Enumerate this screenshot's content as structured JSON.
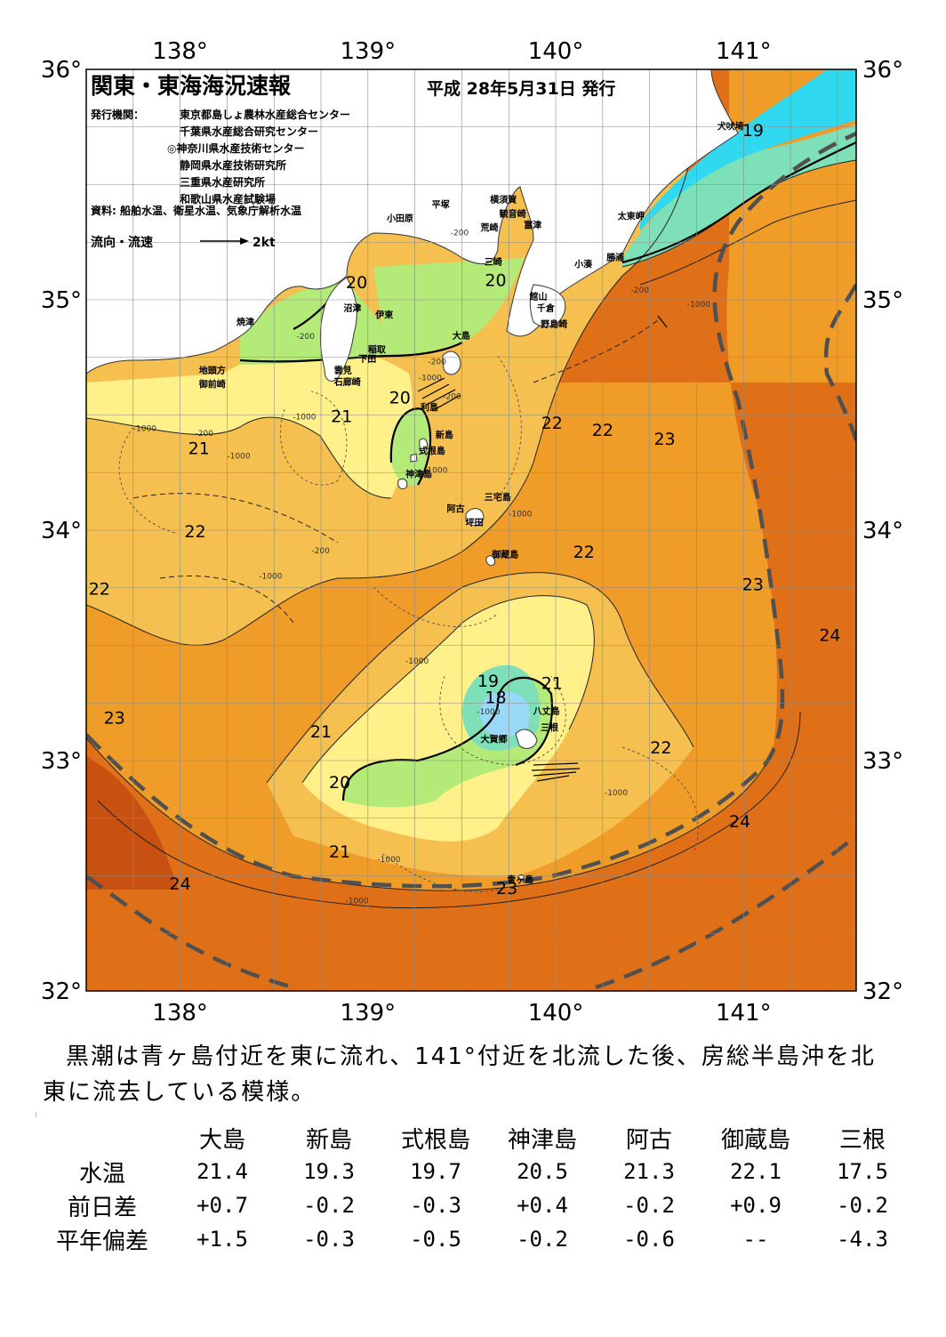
{
  "title": "関東・東海海況速報",
  "issue_date": "平成 28年5月31日 発行",
  "publishers_label": "発行機関：",
  "publishers": [
    "東京都島しょ農林水産総合センター",
    "千葉県水産総合研究センター",
    "◎神奈川県水産技術センター",
    "静岡県水産技術研究所",
    "三重県水産研究所",
    "和歌山県水産試験場"
  ],
  "sources": "資料: 船舶水温、衛星水温、気象庁解析水温",
  "legend": {
    "label": "流向・流速",
    "scale": "2kt"
  },
  "axes": {
    "lon_labels": [
      "138°",
      "139°",
      "140°",
      "141°"
    ],
    "lat_labels": [
      "36°",
      "35°",
      "34°",
      "33°",
      "32°"
    ],
    "lon_range": [
      137.5,
      141.6
    ],
    "lat_range": [
      32.0,
      36.0
    ]
  },
  "colors": {
    "t18": "#9ad8f8",
    "t19": "#7de0b8",
    "t20": "#b4ea78",
    "t21": "#fff08a",
    "t22": "#f6c050",
    "t23": "#ef9c28",
    "t24": "#e07018",
    "t25": "#c85010",
    "coast_cold": "#30d8f0",
    "kuroshio_axis": "#505050",
    "land": "#ffffff"
  },
  "places": [
    {
      "name": "犬吠埼",
      "lon": 140.86,
      "lat": 35.74
    },
    {
      "name": "太東岬",
      "lon": 140.33,
      "lat": 35.35
    },
    {
      "name": "勝浦",
      "lon": 140.27,
      "lat": 35.17
    },
    {
      "name": "小湊",
      "lon": 140.1,
      "lat": 35.14
    },
    {
      "name": "富津",
      "lon": 139.83,
      "lat": 35.31
    },
    {
      "name": "横須賀",
      "lon": 139.65,
      "lat": 35.42
    },
    {
      "name": "平塚",
      "lon": 139.34,
      "lat": 35.4
    },
    {
      "name": "観音崎",
      "lon": 139.7,
      "lat": 35.36
    },
    {
      "name": "荒崎",
      "lon": 139.6,
      "lat": 35.3
    },
    {
      "name": "三崎",
      "lon": 139.62,
      "lat": 35.15
    },
    {
      "name": "小田原",
      "lon": 139.1,
      "lat": 35.34
    },
    {
      "name": "館山",
      "lon": 139.86,
      "lat": 35.0
    },
    {
      "name": "千倉",
      "lon": 139.9,
      "lat": 34.95
    },
    {
      "name": "野島崎",
      "lon": 139.92,
      "lat": 34.88
    },
    {
      "name": "沼津",
      "lon": 138.87,
      "lat": 34.95
    },
    {
      "name": "伊東",
      "lon": 139.04,
      "lat": 34.92
    },
    {
      "name": "焼津",
      "lon": 138.3,
      "lat": 34.89
    },
    {
      "name": "大島",
      "lon": 139.45,
      "lat": 34.83
    },
    {
      "name": "稲取",
      "lon": 139.0,
      "lat": 34.77
    },
    {
      "name": "下田",
      "lon": 138.95,
      "lat": 34.73
    },
    {
      "name": "雲見",
      "lon": 138.82,
      "lat": 34.68
    },
    {
      "name": "石廊崎",
      "lon": 138.82,
      "lat": 34.63
    },
    {
      "name": "地頭方",
      "lon": 138.1,
      "lat": 34.68
    },
    {
      "name": "御前崎",
      "lon": 138.1,
      "lat": 34.62
    },
    {
      "name": "利島",
      "lon": 139.28,
      "lat": 34.52
    },
    {
      "name": "新島",
      "lon": 139.36,
      "lat": 34.4
    },
    {
      "name": "式根島",
      "lon": 139.27,
      "lat": 34.33
    },
    {
      "name": "神津島",
      "lon": 139.2,
      "lat": 34.23
    },
    {
      "name": "三宅島",
      "lon": 139.62,
      "lat": 34.13
    },
    {
      "name": "阿古",
      "lon": 139.42,
      "lat": 34.08
    },
    {
      "name": "坪田",
      "lon": 139.52,
      "lat": 34.02
    },
    {
      "name": "御蔵島",
      "lon": 139.66,
      "lat": 33.88
    },
    {
      "name": "八丈島",
      "lon": 139.88,
      "lat": 33.2
    },
    {
      "name": "三根",
      "lon": 139.92,
      "lat": 33.13
    },
    {
      "name": "大賀郷",
      "lon": 139.6,
      "lat": 33.08
    },
    {
      "name": "青ヶ島",
      "lon": 139.74,
      "lat": 32.47
    }
  ],
  "isotherm_labels": [
    {
      "t": "19",
      "lon": 141.05,
      "lat": 35.71
    },
    {
      "t": "20",
      "lon": 138.94,
      "lat": 35.05
    },
    {
      "t": "20",
      "lon": 139.68,
      "lat": 35.06
    },
    {
      "t": "20",
      "lon": 139.17,
      "lat": 34.55
    },
    {
      "t": "21",
      "lon": 138.86,
      "lat": 34.47
    },
    {
      "t": "21",
      "lon": 138.1,
      "lat": 34.33
    },
    {
      "t": "22",
      "lon": 138.08,
      "lat": 33.97
    },
    {
      "t": "22",
      "lon": 137.57,
      "lat": 33.72
    },
    {
      "t": "22",
      "lon": 139.98,
      "lat": 34.44
    },
    {
      "t": "22",
      "lon": 140.25,
      "lat": 34.41
    },
    {
      "t": "23",
      "lon": 140.58,
      "lat": 34.37
    },
    {
      "t": "22",
      "lon": 140.15,
      "lat": 33.88
    },
    {
      "t": "23",
      "lon": 141.05,
      "lat": 33.74
    },
    {
      "t": "24",
      "lon": 141.46,
      "lat": 33.52
    },
    {
      "t": "23",
      "lon": 137.65,
      "lat": 33.16
    },
    {
      "t": "19",
      "lon": 139.64,
      "lat": 33.32
    },
    {
      "t": "18",
      "lon": 139.68,
      "lat": 33.25
    },
    {
      "t": "21",
      "lon": 139.98,
      "lat": 33.31
    },
    {
      "t": "21",
      "lon": 138.75,
      "lat": 33.1
    },
    {
      "t": "22",
      "lon": 140.56,
      "lat": 33.03
    },
    {
      "t": "20",
      "lon": 138.85,
      "lat": 32.88
    },
    {
      "t": "21",
      "lon": 138.85,
      "lat": 32.58
    },
    {
      "t": "24",
      "lon": 140.98,
      "lat": 32.71
    },
    {
      "t": "24",
      "lon": 138.0,
      "lat": 32.44
    },
    {
      "t": "23",
      "lon": 139.74,
      "lat": 32.42
    }
  ],
  "depth_labels": [
    {
      "t": "-200",
      "lon": 139.44,
      "lat": 35.28
    },
    {
      "t": "-200",
      "lon": 140.4,
      "lat": 35.03
    },
    {
      "t": "-1000",
      "lon": 140.7,
      "lat": 34.97
    },
    {
      "t": "-200",
      "lon": 138.62,
      "lat": 34.83
    },
    {
      "t": "-200",
      "lon": 139.32,
      "lat": 34.72
    },
    {
      "t": "-200",
      "lon": 139.4,
      "lat": 34.57
    },
    {
      "t": "-1000",
      "lon": 139.27,
      "lat": 34.65
    },
    {
      "t": "-200",
      "lon": 138.08,
      "lat": 34.41
    },
    {
      "t": "-1000",
      "lon": 137.75,
      "lat": 34.43
    },
    {
      "t": "-1000",
      "lon": 138.6,
      "lat": 34.48
    },
    {
      "t": "-1000",
      "lon": 138.25,
      "lat": 34.31
    },
    {
      "t": "-1000",
      "lon": 139.3,
      "lat": 34.25
    },
    {
      "t": "-1000",
      "lon": 139.75,
      "lat": 34.06
    },
    {
      "t": "-200",
      "lon": 138.7,
      "lat": 33.9
    },
    {
      "t": "-1000",
      "lon": 138.42,
      "lat": 33.79
    },
    {
      "t": "-1000",
      "lon": 139.2,
      "lat": 33.42
    },
    {
      "t": "-1000",
      "lon": 139.58,
      "lat": 33.2
    },
    {
      "t": "-1000",
      "lon": 140.26,
      "lat": 32.85
    },
    {
      "t": "-1000",
      "lon": 139.05,
      "lat": 32.56
    },
    {
      "t": "-1000",
      "lon": 138.88,
      "lat": 32.38
    }
  ],
  "summary": "黒潮は青ヶ島付近を東に流れ、141°付近を北流した後、房総半島沖を北東に流去している模様。",
  "observations": {
    "stations": [
      "大島",
      "新島",
      "式根島",
      "神津島",
      "阿古",
      "御蔵島",
      "三根"
    ],
    "rows": [
      {
        "label": "水温",
        "values": [
          "21.4",
          "19.3",
          "19.7",
          "20.5",
          "21.3",
          "22.1",
          "17.5"
        ]
      },
      {
        "label": "前日差",
        "values": [
          "+0.7",
          "-0.2",
          "-0.3",
          "+0.4",
          "-0.2",
          "+0.9",
          "-0.2"
        ]
      },
      {
        "label": "平年偏差",
        "values": [
          "+1.5",
          "-0.3",
          "-0.5",
          "-0.2",
          "-0.6",
          "--",
          "-4.3"
        ]
      }
    ]
  }
}
